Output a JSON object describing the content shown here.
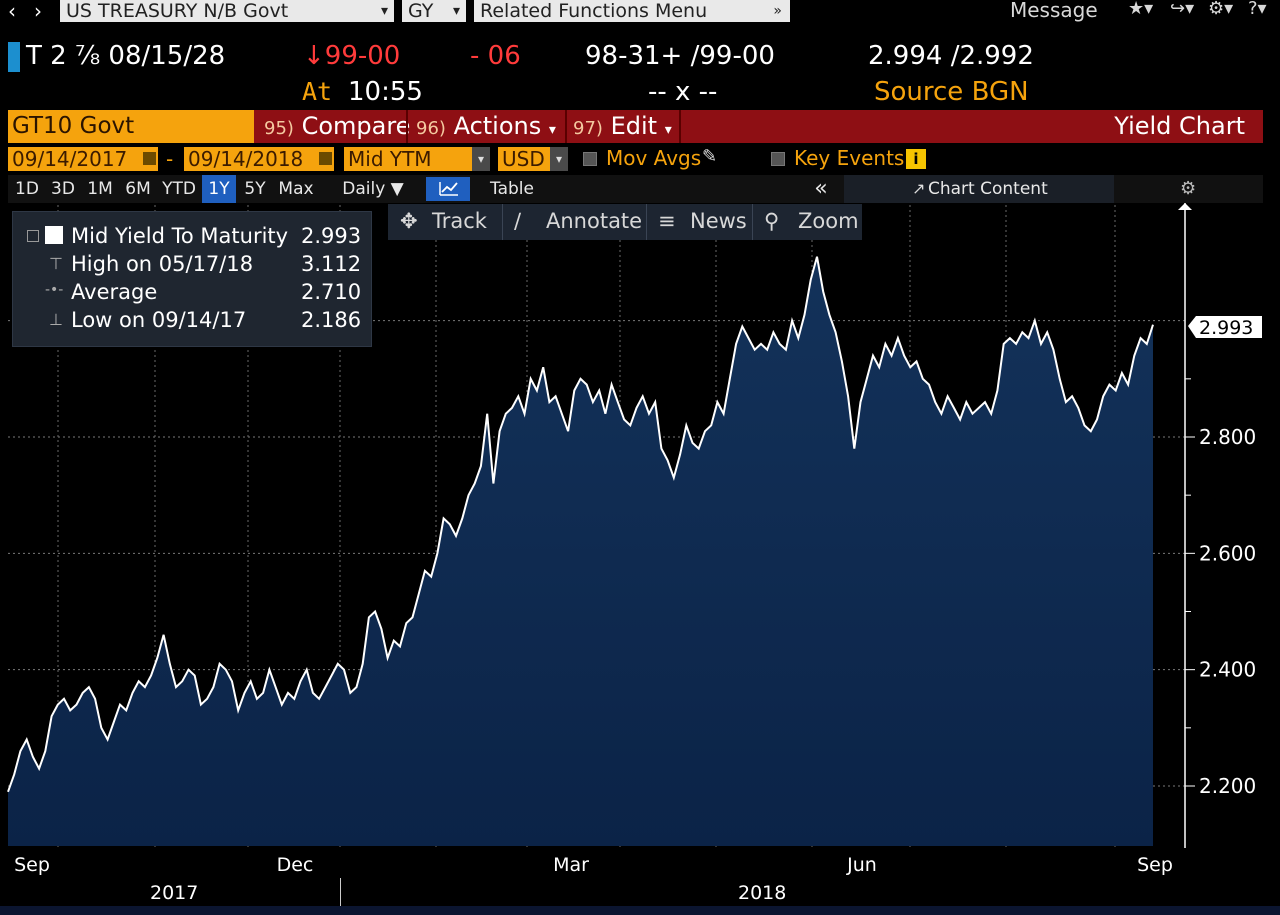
{
  "topbar": {
    "security": "US TREASURY N/B Govt",
    "function": "GY",
    "related": "Related Functions  Menu",
    "message": "Message",
    "icons": [
      "back-arrow",
      "forward-arrow",
      "star",
      "export",
      "gear",
      "help"
    ]
  },
  "quote": {
    "ticker": "T 2 ⅞ 08/15/28",
    "price": "↓99-00",
    "change": "- 06",
    "bidask": "98-31+ /99-00",
    "yields": "2.994 /2.992",
    "time_label": "At",
    "time": "10:55",
    "size": "-- x --",
    "source": "Source BGN"
  },
  "function_row": {
    "security_field": "GT10 Govt",
    "compare_num": "95)",
    "compare": "Compare",
    "actions_num": "96)",
    "actions": "Actions",
    "edit_num": "97)",
    "edit": "Edit",
    "title": "Yield Chart"
  },
  "settings": {
    "start_date": "09/14/2017",
    "dash": "-",
    "end_date": "09/14/2018",
    "field": "Mid YTM",
    "currency": "USD",
    "mov_avgs": "Mov Avgs",
    "key_events": "Key Events"
  },
  "ranges": [
    "1D",
    "3D",
    "1M",
    "6M",
    "YTD",
    "1Y",
    "5Y",
    "Max"
  ],
  "active_range": "1Y",
  "periodicity": "Daily ▼",
  "table_label": "Table",
  "collapse": "«",
  "chart_content": "Chart Content",
  "chart_tools": {
    "track": "Track",
    "annotate": "Annotate",
    "news": "News",
    "zoom": "Zoom"
  },
  "legend": [
    {
      "label": "Mid Yield To Maturity",
      "value": "2.993"
    },
    {
      "label": "High on 05/17/18",
      "value": "3.112"
    },
    {
      "label": "Average",
      "value": "2.710"
    },
    {
      "label": "Low on 09/14/17",
      "value": "2.186"
    }
  ],
  "colors": {
    "accent_orange": "#f5a30d",
    "function_red": "#8e0f14",
    "area_fill": "#0f2b4f",
    "line": "#ffffff",
    "down_red": "#ff3b3b"
  },
  "chart_data": {
    "type": "area",
    "title": "",
    "ylim": [
      2.1,
      3.15
    ],
    "y_ticks": [
      "2.200",
      "2.400",
      "2.600",
      "2.800"
    ],
    "x_ticks": [
      "Sep",
      "Dec",
      "Mar",
      "Jun",
      "Sep"
    ],
    "years": [
      "2017",
      "2018"
    ],
    "last_value_label": "2.993",
    "series": [
      {
        "values": [
          2.19,
          2.22,
          2.26,
          2.28,
          2.25,
          2.23,
          2.26,
          2.32,
          2.34,
          2.35,
          2.33,
          2.34,
          2.36,
          2.37,
          2.35,
          2.3,
          2.28,
          2.31,
          2.34,
          2.33,
          2.36,
          2.38,
          2.37,
          2.39,
          2.42,
          2.46,
          2.41,
          2.37,
          2.38,
          2.4,
          2.39,
          2.34,
          2.35,
          2.37,
          2.41,
          2.4,
          2.38,
          2.33,
          2.36,
          2.38,
          2.35,
          2.36,
          2.4,
          2.37,
          2.34,
          2.36,
          2.35,
          2.38,
          2.4,
          2.36,
          2.35,
          2.37,
          2.39,
          2.41,
          2.4,
          2.36,
          2.37,
          2.41,
          2.49,
          2.5,
          2.47,
          2.42,
          2.45,
          2.44,
          2.48,
          2.49,
          2.53,
          2.57,
          2.56,
          2.6,
          2.66,
          2.65,
          2.63,
          2.66,
          2.7,
          2.72,
          2.75,
          2.84,
          2.72,
          2.81,
          2.84,
          2.85,
          2.87,
          2.84,
          2.9,
          2.88,
          2.92,
          2.86,
          2.87,
          2.84,
          2.81,
          2.88,
          2.9,
          2.89,
          2.86,
          2.88,
          2.84,
          2.89,
          2.86,
          2.83,
          2.82,
          2.85,
          2.87,
          2.84,
          2.86,
          2.78,
          2.76,
          2.73,
          2.77,
          2.82,
          2.79,
          2.78,
          2.81,
          2.82,
          2.86,
          2.84,
          2.9,
          2.96,
          2.99,
          2.97,
          2.95,
          2.96,
          2.95,
          2.98,
          2.96,
          2.95,
          3.0,
          2.97,
          3.01,
          3.07,
          3.11,
          3.05,
          3.01,
          2.98,
          2.93,
          2.87,
          2.78,
          2.86,
          2.9,
          2.94,
          2.92,
          2.96,
          2.94,
          2.97,
          2.94,
          2.92,
          2.93,
          2.9,
          2.89,
          2.86,
          2.84,
          2.87,
          2.85,
          2.83,
          2.86,
          2.84,
          2.85,
          2.86,
          2.84,
          2.88,
          2.96,
          2.97,
          2.96,
          2.98,
          2.97,
          3.0,
          2.96,
          2.98,
          2.95,
          2.9,
          2.86,
          2.87,
          2.85,
          2.82,
          2.81,
          2.83,
          2.87,
          2.89,
          2.88,
          2.91,
          2.89,
          2.94,
          2.97,
          2.96,
          2.993
        ]
      }
    ]
  }
}
